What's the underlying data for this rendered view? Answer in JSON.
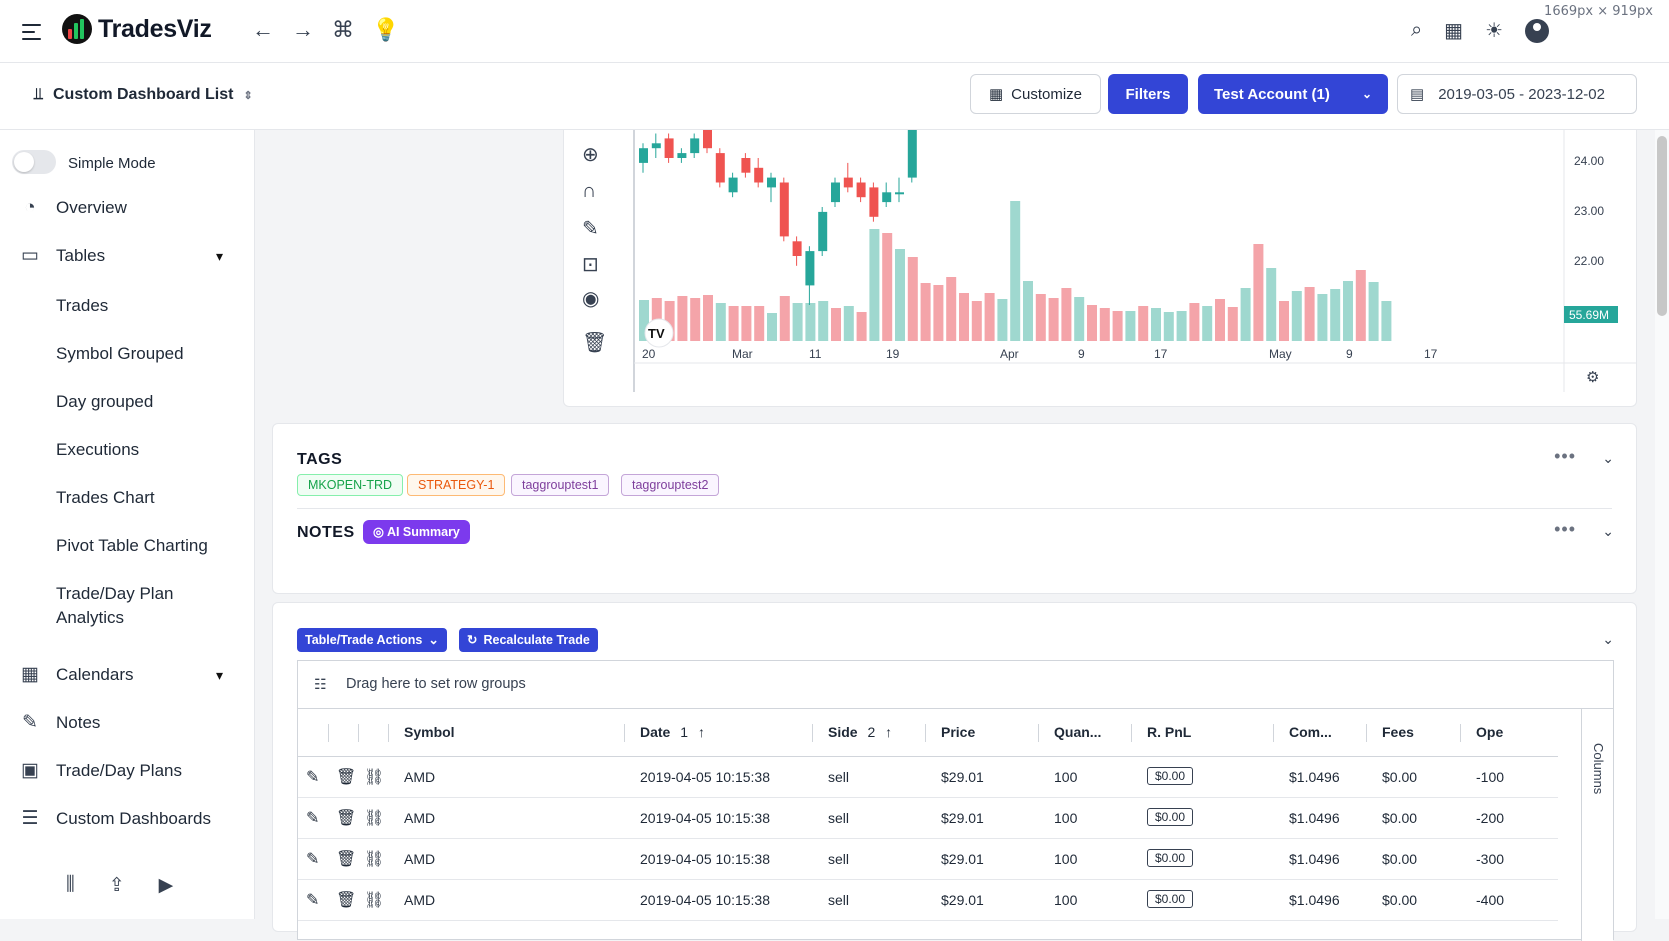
{
  "header": {
    "app_name": "TradesViz",
    "dim_label": "1669px × 919px",
    "nav_icons": [
      "arrow-left-icon",
      "arrow-right-icon",
      "command-icon",
      "lightbulb-icon"
    ],
    "right_icons": [
      "search-icon",
      "apps-grid-icon",
      "theme-sun-icon",
      "user-avatar-icon"
    ]
  },
  "subbar": {
    "title": "Custom Dashboard List",
    "customize": "Customize",
    "filters": "Filters",
    "account": "Test Account (1)",
    "date_range": "2019-03-05 - 2023-12-02"
  },
  "sidebar": {
    "simple_mode": "Simple Mode",
    "overview": "Overview",
    "tables": "Tables",
    "tables_items": [
      "Trades",
      "Symbol Grouped",
      "Day grouped",
      "Executions",
      "Trades Chart",
      "Pivot Table Charting",
      "Trade/Day Plan",
      "Analytics"
    ],
    "calendars": "Calendars",
    "notes": "Notes",
    "plans": "Trade/Day Plans",
    "custom_dashboards": "Custom Dashboards"
  },
  "chart": {
    "y_ticks": [
      "24.00",
      "23.00",
      "22.00"
    ],
    "volume_label": "55.69M",
    "x_ticks": [
      "20",
      "Mar",
      "11",
      "19",
      "Apr",
      "9",
      "17",
      "May",
      "9",
      "17"
    ],
    "colors": {
      "up": "#26a69a",
      "down": "#ef5350",
      "vol_up": "#9fd8cf",
      "vol_down": "#f4a4a9"
    },
    "candles": [
      {
        "o": 23.9,
        "c": 24.2,
        "h": 24.3,
        "l": 23.7
      },
      {
        "o": 24.2,
        "c": 24.3,
        "h": 24.5,
        "l": 24.0
      },
      {
        "o": 24.4,
        "c": 24.0,
        "h": 24.5,
        "l": 23.9
      },
      {
        "o": 24.0,
        "c": 24.1,
        "h": 24.2,
        "l": 23.9
      },
      {
        "o": 24.1,
        "c": 24.4,
        "h": 24.5,
        "l": 24.0
      },
      {
        "o": 24.6,
        "c": 24.2,
        "h": 24.7,
        "l": 24.1
      },
      {
        "o": 24.1,
        "c": 23.5,
        "h": 24.2,
        "l": 23.4
      },
      {
        "o": 23.3,
        "c": 23.6,
        "h": 23.7,
        "l": 23.2
      },
      {
        "o": 24.0,
        "c": 23.7,
        "h": 24.1,
        "l": 23.6
      },
      {
        "o": 23.8,
        "c": 23.5,
        "h": 24.0,
        "l": 23.4
      },
      {
        "o": 23.4,
        "c": 23.6,
        "h": 23.7,
        "l": 23.1
      },
      {
        "o": 23.5,
        "c": 22.4,
        "h": 23.6,
        "l": 22.3
      },
      {
        "o": 22.3,
        "c": 22.0,
        "h": 22.4,
        "l": 21.8
      },
      {
        "o": 21.4,
        "c": 22.1,
        "h": 22.2,
        "l": 21.0
      },
      {
        "o": 22.1,
        "c": 22.9,
        "h": 23.0,
        "l": 22.0
      },
      {
        "o": 23.1,
        "c": 23.5,
        "h": 23.6,
        "l": 23.0
      },
      {
        "o": 23.6,
        "c": 23.4,
        "h": 23.9,
        "l": 23.3
      },
      {
        "o": 23.5,
        "c": 23.2,
        "h": 23.6,
        "l": 23.1
      },
      {
        "o": 23.4,
        "c": 22.8,
        "h": 23.5,
        "l": 22.7
      },
      {
        "o": 23.1,
        "c": 23.3,
        "h": 23.5,
        "l": 23.0
      },
      {
        "o": 23.3,
        "c": 23.3,
        "h": 23.6,
        "l": 23.1
      },
      {
        "o": 23.6,
        "c": 24.7,
        "h": 24.8,
        "l": 23.5
      }
    ],
    "volumes": [
      {
        "v": 41,
        "up": true
      },
      {
        "v": 43,
        "up": false
      },
      {
        "v": 40,
        "up": false
      },
      {
        "v": 45,
        "up": false
      },
      {
        "v": 43,
        "up": false
      },
      {
        "v": 46,
        "up": false
      },
      {
        "v": 38,
        "up": true
      },
      {
        "v": 35,
        "up": false
      },
      {
        "v": 35,
        "up": false
      },
      {
        "v": 35,
        "up": false
      },
      {
        "v": 28,
        "up": true
      },
      {
        "v": 45,
        "up": false
      },
      {
        "v": 38,
        "up": true
      },
      {
        "v": 38,
        "up": true
      },
      {
        "v": 40,
        "up": true
      },
      {
        "v": 33,
        "up": false
      },
      {
        "v": 35,
        "up": true
      },
      {
        "v": 29,
        "up": false
      },
      {
        "v": 112,
        "up": true
      },
      {
        "v": 108,
        "up": false
      },
      {
        "v": 92,
        "up": true
      },
      {
        "v": 84,
        "up": false
      },
      {
        "v": 58,
        "up": false
      },
      {
        "v": 56,
        "up": false
      },
      {
        "v": 64,
        "up": false
      },
      {
        "v": 48,
        "up": false
      },
      {
        "v": 40,
        "up": false
      },
      {
        "v": 48,
        "up": false
      },
      {
        "v": 42,
        "up": true
      },
      {
        "v": 140,
        "up": true
      },
      {
        "v": 60,
        "up": true
      },
      {
        "v": 47,
        "up": false
      },
      {
        "v": 43,
        "up": false
      },
      {
        "v": 53,
        "up": false
      },
      {
        "v": 44,
        "up": true
      },
      {
        "v": 36,
        "up": false
      },
      {
        "v": 33,
        "up": false
      },
      {
        "v": 30,
        "up": false
      },
      {
        "v": 30,
        "up": true
      },
      {
        "v": 35,
        "up": false
      },
      {
        "v": 33,
        "up": true
      },
      {
        "v": 29,
        "up": true
      },
      {
        "v": 30,
        "up": true
      },
      {
        "v": 38,
        "up": false
      },
      {
        "v": 35,
        "up": true
      },
      {
        "v": 42,
        "up": false
      },
      {
        "v": 34,
        "up": false
      },
      {
        "v": 53,
        "up": true
      },
      {
        "v": 97,
        "up": false
      },
      {
        "v": 73,
        "up": true
      },
      {
        "v": 40,
        "up": false
      },
      {
        "v": 50,
        "up": true
      },
      {
        "v": 54,
        "up": false
      },
      {
        "v": 47,
        "up": true
      },
      {
        "v": 52,
        "up": true
      },
      {
        "v": 60,
        "up": true
      },
      {
        "v": 71,
        "up": false
      },
      {
        "v": 59,
        "up": true
      },
      {
        "v": 40,
        "up": true
      }
    ]
  },
  "tags": {
    "title": "TAGS",
    "items": [
      "MKOPEN-TRD",
      "STRATEGY-1",
      "taggrouptest1",
      "taggrouptest2"
    ]
  },
  "notes": {
    "title": "NOTES",
    "ai_summary": "AI Summary"
  },
  "table": {
    "actions": "Table/Trade Actions",
    "recalc": "Recalculate Trade",
    "group_hint": "Drag here to set row groups",
    "columns_label": "Columns",
    "headers": {
      "symbol": "Symbol",
      "date": "Date",
      "date_sort": "1",
      "side": "Side",
      "side_sort": "2",
      "price": "Price",
      "quantity": "Quan...",
      "rpnl": "R. PnL",
      "commission": "Com...",
      "fees": "Fees",
      "open": "Ope"
    },
    "rows": [
      {
        "symbol": "AMD",
        "date": "2019-04-05 10:15:38",
        "side": "sell",
        "price": "$29.01",
        "qty": "100",
        "rpnl": "$0.00",
        "comm": "$1.0496",
        "fees": "$0.00",
        "open": "-100"
      },
      {
        "symbol": "AMD",
        "date": "2019-04-05 10:15:38",
        "side": "sell",
        "price": "$29.01",
        "qty": "100",
        "rpnl": "$0.00",
        "comm": "$1.0496",
        "fees": "$0.00",
        "open": "-200"
      },
      {
        "symbol": "AMD",
        "date": "2019-04-05 10:15:38",
        "side": "sell",
        "price": "$29.01",
        "qty": "100",
        "rpnl": "$0.00",
        "comm": "$1.0496",
        "fees": "$0.00",
        "open": "-300"
      },
      {
        "symbol": "AMD",
        "date": "2019-04-05 10:15:38",
        "side": "sell",
        "price": "$29.01",
        "qty": "100",
        "rpnl": "$0.00",
        "comm": "$1.0496",
        "fees": "$0.00",
        "open": "-400"
      }
    ]
  }
}
